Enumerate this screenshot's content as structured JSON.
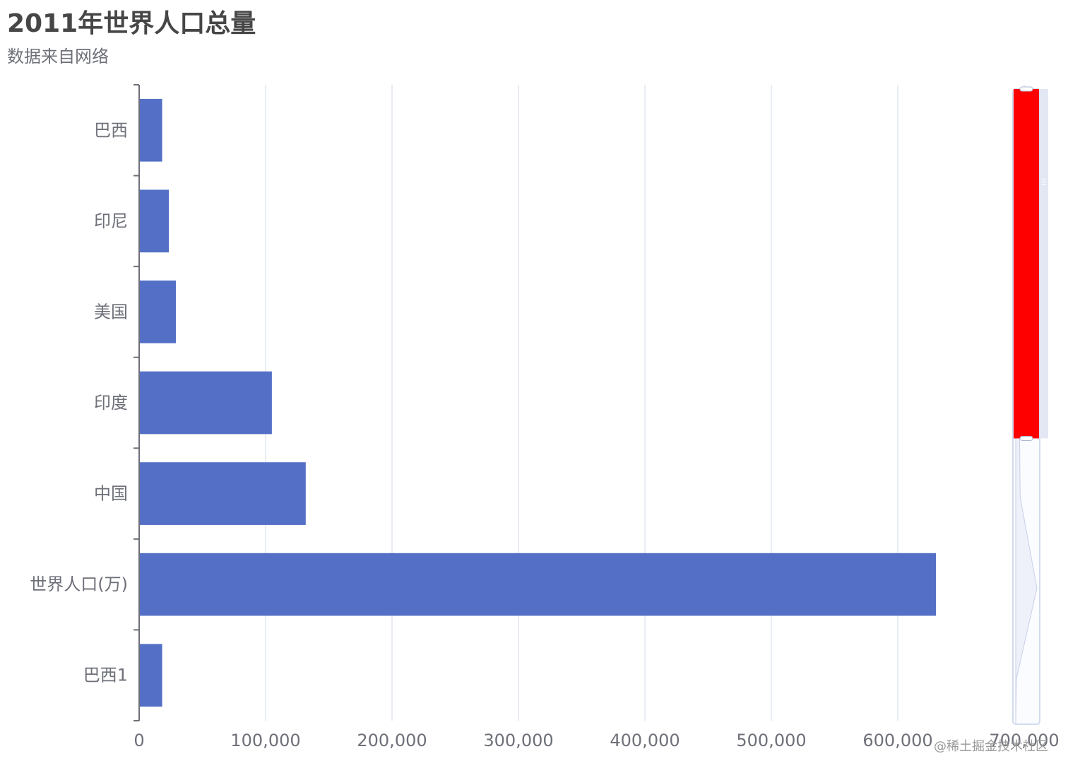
{
  "title": "2011年世界人口总量",
  "subtitle": "数据来自网络",
  "watermark": "@稀土掘金技术社区",
  "colors": {
    "bar": "#5470c6",
    "grid": "#e0e6f1",
    "axis": "#6e7079",
    "zoom_fill": "#ff0000",
    "zoom_border": "#d2dbee"
  },
  "chart_data": {
    "type": "bar",
    "orientation": "horizontal",
    "categories": [
      "巴西",
      "印尼",
      "美国",
      "印度",
      "中国",
      "世界人口(万)",
      "巴西1"
    ],
    "values": [
      18203,
      23489,
      29034,
      104970,
      131744,
      630230,
      18203
    ],
    "xlim": [
      0,
      700000
    ],
    "x_ticks": [
      0,
      100000,
      200000,
      300000,
      400000,
      500000,
      600000,
      700000
    ],
    "x_tick_labels": [
      "0",
      "100,000",
      "200,000",
      "300,000",
      "400,000",
      "500,000",
      "600,000",
      "700,000"
    ],
    "grid": true,
    "data_zoom": {
      "orientation": "vertical",
      "start": 0,
      "end": 0.55
    }
  }
}
